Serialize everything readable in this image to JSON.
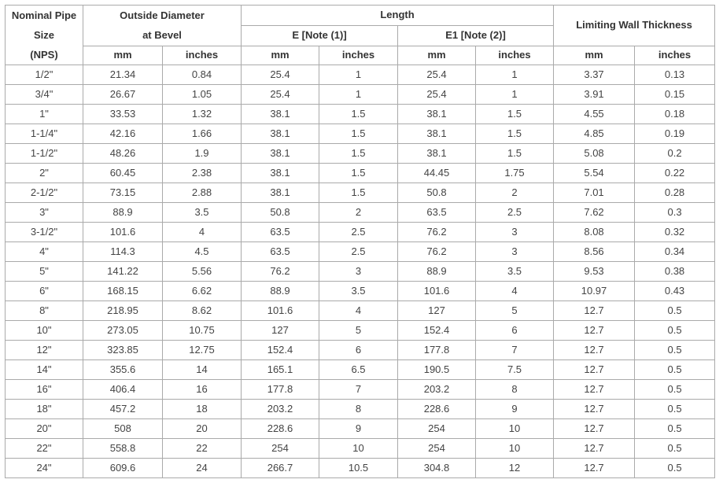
{
  "headers": {
    "nps_line1": "Nominal Pipe",
    "nps_line2": "Size",
    "nps_line3": "(NPS)",
    "od_line1": "Outside Diameter",
    "od_line2": "at Bevel",
    "length": "Length",
    "e_note": "E [Note (1)]",
    "e1_note": "E1 [Note (2)]",
    "limiting": "Limiting Wall Thickness",
    "mm": "mm",
    "inches": "inches"
  },
  "rows": [
    {
      "nps": "1/2\"",
      "od_mm": "21.34",
      "od_in": "0.84",
      "e_mm": "25.4",
      "e_in": "1",
      "e1_mm": "25.4",
      "e1_in": "1",
      "lw_mm": "3.37",
      "lw_in": "0.13"
    },
    {
      "nps": "3/4\"",
      "od_mm": "26.67",
      "od_in": "1.05",
      "e_mm": "25.4",
      "e_in": "1",
      "e1_mm": "25.4",
      "e1_in": "1",
      "lw_mm": "3.91",
      "lw_in": "0.15"
    },
    {
      "nps": "1\"",
      "od_mm": "33.53",
      "od_in": "1.32",
      "e_mm": "38.1",
      "e_in": "1.5",
      "e1_mm": "38.1",
      "e1_in": "1.5",
      "lw_mm": "4.55",
      "lw_in": "0.18"
    },
    {
      "nps": "1-1/4\"",
      "od_mm": "42.16",
      "od_in": "1.66",
      "e_mm": "38.1",
      "e_in": "1.5",
      "e1_mm": "38.1",
      "e1_in": "1.5",
      "lw_mm": "4.85",
      "lw_in": "0.19"
    },
    {
      "nps": "1-1/2\"",
      "od_mm": "48.26",
      "od_in": "1.9",
      "e_mm": "38.1",
      "e_in": "1.5",
      "e1_mm": "38.1",
      "e1_in": "1.5",
      "lw_mm": "5.08",
      "lw_in": "0.2"
    },
    {
      "nps": "2\"",
      "od_mm": "60.45",
      "od_in": "2.38",
      "e_mm": "38.1",
      "e_in": "1.5",
      "e1_mm": "44.45",
      "e1_in": "1.75",
      "lw_mm": "5.54",
      "lw_in": "0.22"
    },
    {
      "nps": "2-1/2\"",
      "od_mm": "73.15",
      "od_in": "2.88",
      "e_mm": "38.1",
      "e_in": "1.5",
      "e1_mm": "50.8",
      "e1_in": "2",
      "lw_mm": "7.01",
      "lw_in": "0.28"
    },
    {
      "nps": "3\"",
      "od_mm": "88.9",
      "od_in": "3.5",
      "e_mm": "50.8",
      "e_in": "2",
      "e1_mm": "63.5",
      "e1_in": "2.5",
      "lw_mm": "7.62",
      "lw_in": "0.3"
    },
    {
      "nps": "3-1/2\"",
      "od_mm": "101.6",
      "od_in": "4",
      "e_mm": "63.5",
      "e_in": "2.5",
      "e1_mm": "76.2",
      "e1_in": "3",
      "lw_mm": "8.08",
      "lw_in": "0.32"
    },
    {
      "nps": "4\"",
      "od_mm": "114.3",
      "od_in": "4.5",
      "e_mm": "63.5",
      "e_in": "2.5",
      "e1_mm": "76.2",
      "e1_in": "3",
      "lw_mm": "8.56",
      "lw_in": "0.34"
    },
    {
      "nps": "5\"",
      "od_mm": "141.22",
      "od_in": "5.56",
      "e_mm": "76.2",
      "e_in": "3",
      "e1_mm": "88.9",
      "e1_in": "3.5",
      "lw_mm": "9.53",
      "lw_in": "0.38"
    },
    {
      "nps": "6\"",
      "od_mm": "168.15",
      "od_in": "6.62",
      "e_mm": "88.9",
      "e_in": "3.5",
      "e1_mm": "101.6",
      "e1_in": "4",
      "lw_mm": "10.97",
      "lw_in": "0.43"
    },
    {
      "nps": "8\"",
      "od_mm": "218.95",
      "od_in": "8.62",
      "e_mm": "101.6",
      "e_in": "4",
      "e1_mm": "127",
      "e1_in": "5",
      "lw_mm": "12.7",
      "lw_in": "0.5"
    },
    {
      "nps": "10\"",
      "od_mm": "273.05",
      "od_in": "10.75",
      "e_mm": "127",
      "e_in": "5",
      "e1_mm": "152.4",
      "e1_in": "6",
      "lw_mm": "12.7",
      "lw_in": "0.5"
    },
    {
      "nps": "12\"",
      "od_mm": "323.85",
      "od_in": "12.75",
      "e_mm": "152.4",
      "e_in": "6",
      "e1_mm": "177.8",
      "e1_in": "7",
      "lw_mm": "12.7",
      "lw_in": "0.5"
    },
    {
      "nps": "14\"",
      "od_mm": "355.6",
      "od_in": "14",
      "e_mm": "165.1",
      "e_in": "6.5",
      "e1_mm": "190.5",
      "e1_in": "7.5",
      "lw_mm": "12.7",
      "lw_in": "0.5"
    },
    {
      "nps": "16\"",
      "od_mm": "406.4",
      "od_in": "16",
      "e_mm": "177.8",
      "e_in": "7",
      "e1_mm": "203.2",
      "e1_in": "8",
      "lw_mm": "12.7",
      "lw_in": "0.5"
    },
    {
      "nps": "18\"",
      "od_mm": "457.2",
      "od_in": "18",
      "e_mm": "203.2",
      "e_in": "8",
      "e1_mm": "228.6",
      "e1_in": "9",
      "lw_mm": "12.7",
      "lw_in": "0.5"
    },
    {
      "nps": "20\"",
      "od_mm": "508",
      "od_in": "20",
      "e_mm": "228.6",
      "e_in": "9",
      "e1_mm": "254",
      "e1_in": "10",
      "lw_mm": "12.7",
      "lw_in": "0.5"
    },
    {
      "nps": "22\"",
      "od_mm": "558.8",
      "od_in": "22",
      "e_mm": "254",
      "e_in": "10",
      "e1_mm": "254",
      "e1_in": "10",
      "lw_mm": "12.7",
      "lw_in": "0.5"
    },
    {
      "nps": "24\"",
      "od_mm": "609.6",
      "od_in": "24",
      "e_mm": "266.7",
      "e_in": "10.5",
      "e1_mm": "304.8",
      "e1_in": "12",
      "lw_mm": "12.7",
      "lw_in": "0.5"
    }
  ]
}
